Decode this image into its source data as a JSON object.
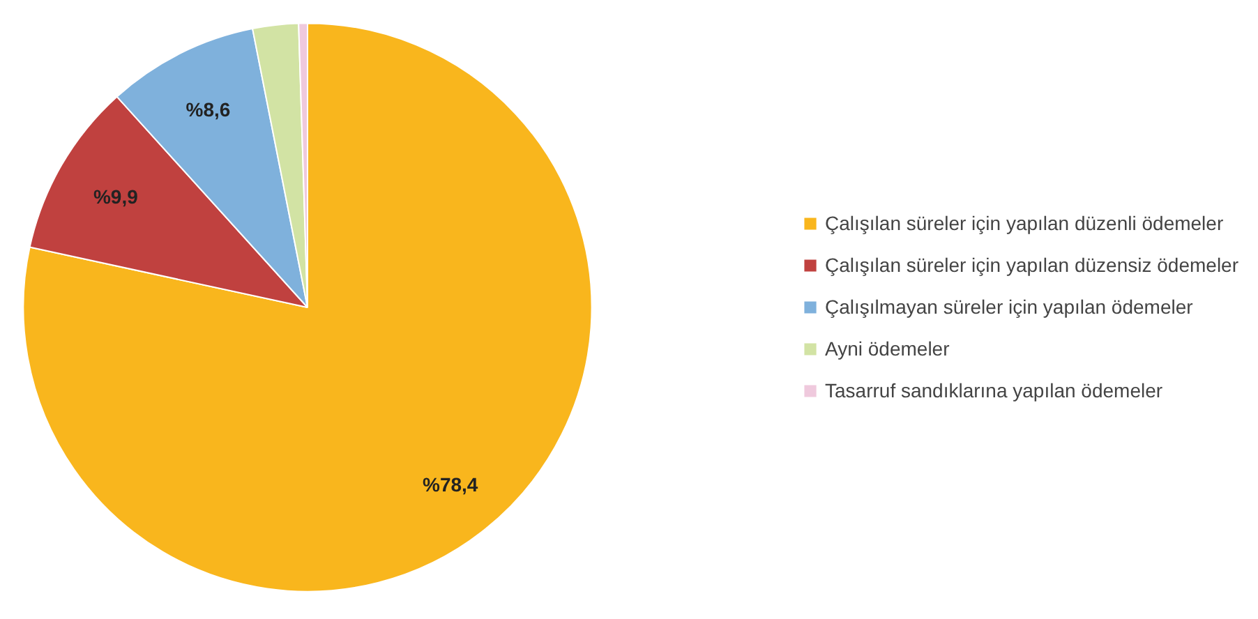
{
  "chart_data": {
    "type": "pie",
    "categories": [
      "Çalışılan süreler için yapılan düzenli ödemeler",
      "Çalışılan süreler için yapılan düzensiz ödemeler",
      "Çalışılmayan süreler için yapılan ödemeler",
      "Ayni ödemeler",
      "Tasarruf sandıklarına yapılan ödemeler"
    ],
    "values": [
      78.4,
      9.9,
      8.6,
      2.6,
      0.5
    ],
    "colors": [
      "#f9b61d",
      "#c0413f",
      "#7fb1dc",
      "#d2e3a4",
      "#efc9dd"
    ],
    "value_labels": [
      "%78,4",
      "%9,9",
      "%8,6",
      null,
      null
    ],
    "legend": "right"
  }
}
